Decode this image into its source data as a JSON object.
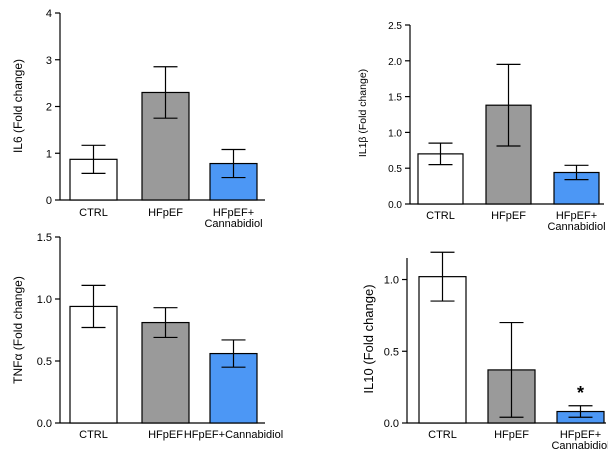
{
  "chart_data": [
    {
      "type": "bar",
      "ylabel": "IL6 (Fold change)",
      "categories": [
        "CTRL",
        "HFpEF",
        "HFpEF+\nCannabidiol"
      ],
      "values": [
        0.87,
        2.3,
        0.78
      ],
      "errors": [
        0.3,
        0.55,
        0.3
      ],
      "colors": [
        "#ffffff",
        "#9a9a9a",
        "#4c97f5"
      ],
      "ylim": [
        0,
        4
      ],
      "yticks": [
        "0",
        "1",
        "2",
        "3",
        "4"
      ],
      "annotations": [
        "",
        "",
        ""
      ]
    },
    {
      "type": "bar",
      "ylabel": "IL1β (Fold change)",
      "categories": [
        "CTRL",
        "HFpEF",
        "HFpEF+\nCannabidiol"
      ],
      "values": [
        0.7,
        1.38,
        0.44
      ],
      "errors": [
        0.15,
        0.57,
        0.1
      ],
      "colors": [
        "#ffffff",
        "#9a9a9a",
        "#4c97f5"
      ],
      "ylim": [
        0,
        2.5
      ],
      "yticks": [
        "0.0",
        "0.5",
        "1.0",
        "1.5",
        "2.0",
        "2.5"
      ],
      "annotations": [
        "",
        "",
        ""
      ]
    },
    {
      "type": "bar",
      "ylabel": "TNFα (Fold change)",
      "categories": [
        "CTRL",
        "HFpEF",
        "HFpEF+Cannabidiol"
      ],
      "values": [
        0.94,
        0.81,
        0.56
      ],
      "errors": [
        0.17,
        0.12,
        0.11
      ],
      "colors": [
        "#ffffff",
        "#9a9a9a",
        "#4c97f5"
      ],
      "ylim": [
        0,
        1.5
      ],
      "yticks": [
        "0.0",
        "0.5",
        "1.0",
        "1.5"
      ],
      "annotations": [
        "",
        "",
        ""
      ]
    },
    {
      "type": "bar",
      "ylabel": "IL10 (Fold change)",
      "categories": [
        "CTRL",
        "HFpEF",
        "HFpEF+\nCannabidiol"
      ],
      "values": [
        1.02,
        0.37,
        0.08
      ],
      "errors": [
        0.17,
        0.33,
        0.04
      ],
      "colors": [
        "#ffffff",
        "#9a9a9a",
        "#4c97f5"
      ],
      "ylim": [
        0,
        1.15
      ],
      "yticks": [
        "0.0",
        "0.5",
        "1.0"
      ],
      "annotations": [
        "",
        "",
        "*"
      ]
    }
  ]
}
